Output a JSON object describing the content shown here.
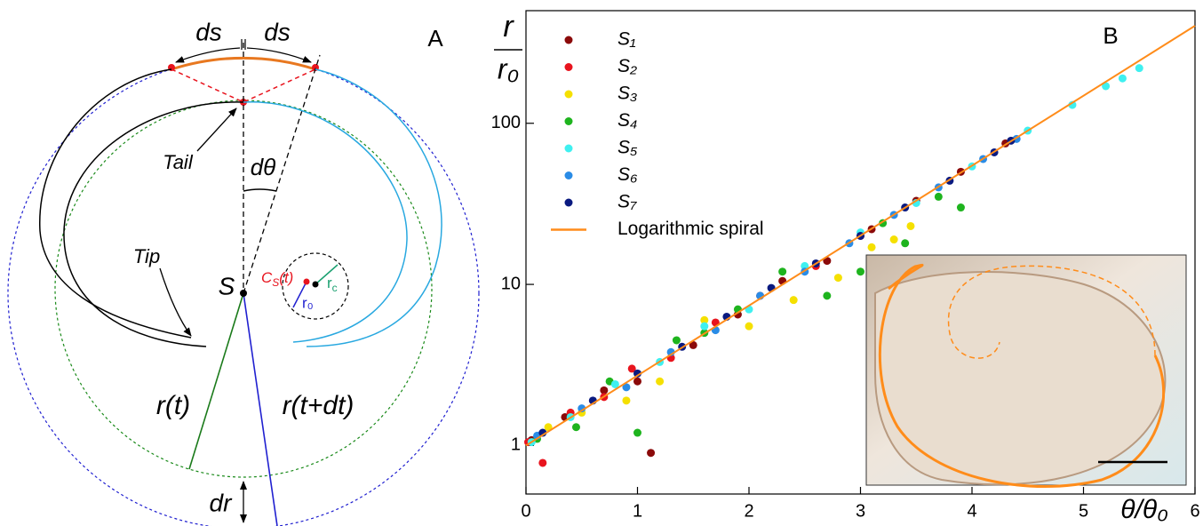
{
  "panel_a": {
    "label": "A",
    "ds_left": "ds",
    "ds_right": "ds",
    "tail": "Tail",
    "dtheta": "dθ",
    "tip": "Tip",
    "center": "S",
    "cs": {
      "base": "C",
      "sub": "S",
      "rest": "(t)"
    },
    "r0": "r₀",
    "rc": {
      "base": "r",
      "sub": "c"
    },
    "r_t": "r(t)",
    "r_t_dt": "r(t+dt)",
    "dr": "dr"
  },
  "chart_data": {
    "type": "scatter",
    "panel_label": "B",
    "ylabel": {
      "numerator": "r",
      "denominator": "r₀"
    },
    "xlabel": "θ/θ₀",
    "xlim": [
      0,
      6
    ],
    "xticks": [
      0,
      1,
      2,
      3,
      4,
      5,
      6
    ],
    "ylim": [
      0.5,
      500
    ],
    "yticks": [
      1,
      10,
      100
    ],
    "log_y": true,
    "legend": "upper left",
    "series": [
      {
        "name": "S₁",
        "color": "#8b0a0a",
        "kind": "scatter",
        "x": [
          0.05,
          0.35,
          0.7,
          1.0,
          1.12,
          1.5,
          1.9,
          2.3,
          2.7,
          3.1,
          3.5,
          3.9,
          4.3
        ],
        "values": [
          1.08,
          1.5,
          2.2,
          2.5,
          0.9,
          4.2,
          6.5,
          10.5,
          14,
          22,
          33,
          50,
          75
        ]
      },
      {
        "name": "S₂",
        "color": "#e8141e",
        "kind": "scatter",
        "x": [
          0.02,
          0.15,
          0.4,
          0.7,
          0.95,
          1.3,
          1.7,
          2.1,
          2.6,
          3.0
        ],
        "values": [
          1.05,
          0.78,
          1.6,
          2.0,
          3.0,
          3.5,
          5.8,
          8.5,
          13,
          20
        ]
      },
      {
        "name": "S₃",
        "color": "#f5e000",
        "kind": "scatter",
        "x": [
          0.2,
          0.5,
          0.9,
          1.2,
          1.6,
          2.0,
          2.4,
          2.8,
          3.1,
          3.3,
          3.45
        ],
        "values": [
          1.3,
          1.6,
          1.9,
          2.5,
          6.0,
          5.5,
          8.0,
          11,
          17,
          19,
          23
        ]
      },
      {
        "name": "S₄",
        "color": "#1eb41e",
        "kind": "scatter",
        "x": [
          0.1,
          0.45,
          0.75,
          1.0,
          1.35,
          1.6,
          1.9,
          2.3,
          2.7,
          3.0,
          3.2,
          3.4,
          3.7,
          3.9
        ],
        "values": [
          1.1,
          1.3,
          2.5,
          1.2,
          4.5,
          5.0,
          7.0,
          12,
          8.5,
          12,
          24,
          18,
          35,
          30
        ]
      },
      {
        "name": "S₅",
        "color": "#3ff0f0",
        "kind": "scatter",
        "x": [
          0.05,
          0.4,
          0.8,
          1.2,
          1.6,
          2.0,
          2.5,
          3.0,
          3.5,
          4.0,
          4.5,
          4.9,
          5.2,
          5.35,
          5.5
        ],
        "values": [
          1.05,
          1.5,
          2.4,
          3.3,
          5.5,
          7,
          13,
          21,
          32,
          54,
          90,
          130,
          170,
          190,
          220
        ]
      },
      {
        "name": "S₆",
        "color": "#2a8ce6",
        "kind": "scatter",
        "x": [
          0.1,
          0.5,
          0.9,
          1.3,
          1.7,
          2.1,
          2.5,
          2.9,
          3.3,
          3.7,
          4.1,
          4.4
        ],
        "values": [
          1.15,
          1.7,
          2.3,
          3.8,
          5.2,
          8.5,
          12,
          18,
          27,
          40,
          60,
          80
        ]
      },
      {
        "name": "S₇",
        "color": "#0a1a80",
        "kind": "scatter",
        "x": [
          0.15,
          0.6,
          1.0,
          1.4,
          1.8,
          2.2,
          2.6,
          3.0,
          3.4,
          3.8,
          4.2,
          4.35
        ],
        "values": [
          1.2,
          1.9,
          2.8,
          4.1,
          6.3,
          9.5,
          13.5,
          20,
          30,
          44,
          66,
          78
        ]
      },
      {
        "name": "Logarithmic spiral",
        "color": "#ff8c1a",
        "kind": "line",
        "x": [
          0,
          6
        ],
        "values": [
          1,
          403
        ]
      }
    ]
  }
}
